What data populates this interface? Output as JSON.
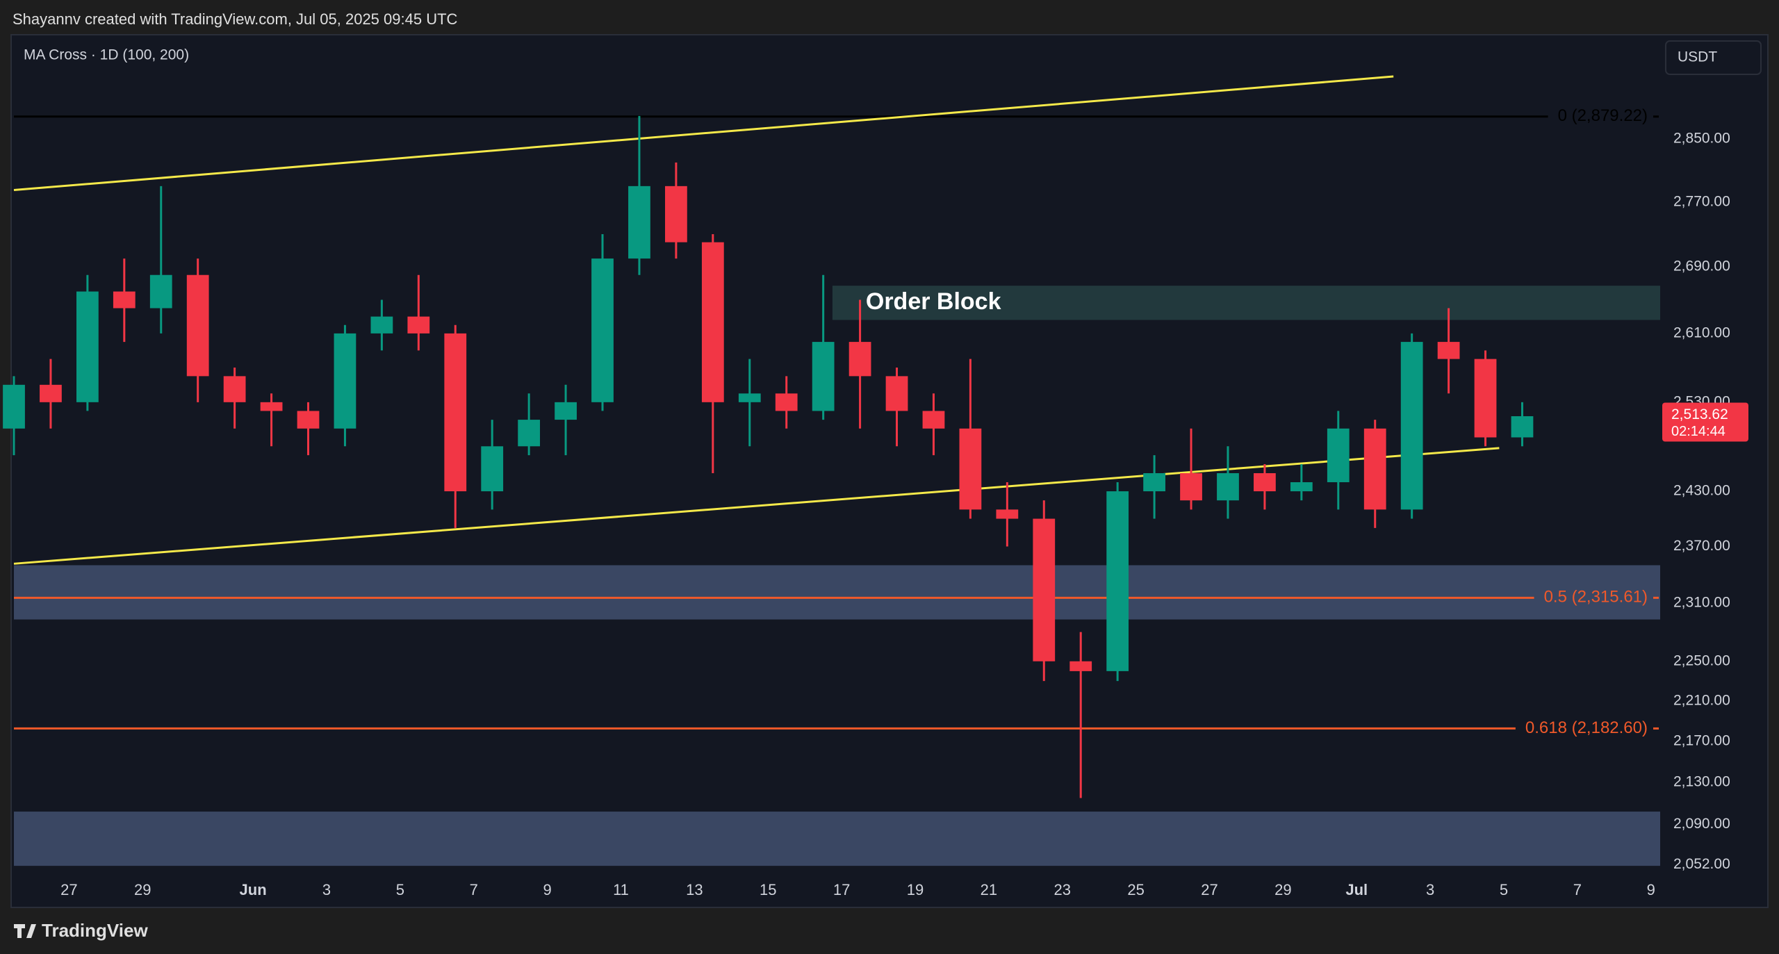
{
  "header": {
    "credit": "Shayannv created with TradingView.com, Jul 05, 2025 09:45 UTC"
  },
  "footer": {
    "brand": "TradingView"
  },
  "chart_data": {
    "type": "candlestick",
    "legend": "MA Cross · 1D (100, 200)",
    "currency": "USDT",
    "log_scale": true,
    "grid": false,
    "up_color": "#089981",
    "down_color": "#f23645",
    "xlim": [
      "2025-05-25T12:00",
      "2025-07-09T06:00"
    ],
    "xticks": [
      {
        "value": "2025-05-27",
        "label": "27"
      },
      {
        "value": "2025-05-29",
        "label": "29"
      },
      {
        "value": "2025-06-01",
        "label": "Jun"
      },
      {
        "value": "2025-06-03",
        "label": "3"
      },
      {
        "value": "2025-06-05",
        "label": "5"
      },
      {
        "value": "2025-06-07",
        "label": "7"
      },
      {
        "value": "2025-06-09",
        "label": "9"
      },
      {
        "value": "2025-06-11",
        "label": "11"
      },
      {
        "value": "2025-06-13",
        "label": "13"
      },
      {
        "value": "2025-06-15",
        "label": "15"
      },
      {
        "value": "2025-06-17",
        "label": "17"
      },
      {
        "value": "2025-06-19",
        "label": "19"
      },
      {
        "value": "2025-06-21",
        "label": "21"
      },
      {
        "value": "2025-06-23",
        "label": "23"
      },
      {
        "value": "2025-06-25",
        "label": "25"
      },
      {
        "value": "2025-06-27",
        "label": "27"
      },
      {
        "value": "2025-06-29",
        "label": "29"
      },
      {
        "value": "2025-07-01",
        "label": "Jul"
      },
      {
        "value": "2025-07-03",
        "label": "3"
      },
      {
        "value": "2025-07-05",
        "label": "5"
      },
      {
        "value": "2025-07-07",
        "label": "7"
      },
      {
        "value": "2025-07-09",
        "label": "9"
      }
    ],
    "ylim": [
      2044,
      2986
    ],
    "yticks": [
      {
        "value": 2850,
        "label": "2,850.00"
      },
      {
        "value": 2770,
        "label": "2,770.00"
      },
      {
        "value": 2690,
        "label": "2,690.00"
      },
      {
        "value": 2610,
        "label": "2,610.00"
      },
      {
        "value": 2530,
        "label": "2,530.00"
      },
      {
        "value": 2430,
        "label": "2,430.00"
      },
      {
        "value": 2370,
        "label": "2,370.00"
      },
      {
        "value": 2310,
        "label": "2,310.00"
      },
      {
        "value": 2250,
        "label": "2,250.00"
      },
      {
        "value": 2210,
        "label": "2,210.00"
      },
      {
        "value": 2170,
        "label": "2,170.00"
      },
      {
        "value": 2130,
        "label": "2,130.00"
      },
      {
        "value": 2090,
        "label": "2,090.00"
      },
      {
        "value": 2052,
        "label": "2,052.00"
      }
    ],
    "x": [
      "2025-05-25",
      "2025-05-26",
      "2025-05-27",
      "2025-05-28",
      "2025-05-29",
      "2025-05-30",
      "2025-05-31",
      "2025-06-01",
      "2025-06-02",
      "2025-06-03",
      "2025-06-04",
      "2025-06-05",
      "2025-06-06",
      "2025-06-07",
      "2025-06-08",
      "2025-06-09",
      "2025-06-10",
      "2025-06-11",
      "2025-06-12",
      "2025-06-13",
      "2025-06-14",
      "2025-06-15",
      "2025-06-16",
      "2025-06-17",
      "2025-06-18",
      "2025-06-19",
      "2025-06-20",
      "2025-06-21",
      "2025-06-22",
      "2025-06-23",
      "2025-06-24",
      "2025-06-25",
      "2025-06-26",
      "2025-06-27",
      "2025-06-28",
      "2025-06-29",
      "2025-06-30",
      "2025-07-01",
      "2025-07-02",
      "2025-07-03",
      "2025-07-04",
      "2025-07-05"
    ],
    "open": [
      2500,
      2550,
      2530,
      2660,
      2640,
      2680,
      2560,
      2530,
      2520,
      2500,
      2610,
      2630,
      2610,
      2430,
      2480,
      2510,
      2530,
      2700,
      2790,
      2720,
      2530,
      2540,
      2520,
      2600,
      2560,
      2520,
      2500,
      2410,
      2400,
      2250,
      2240,
      2430,
      2450,
      2420,
      2450,
      2430,
      2440,
      2500,
      2410,
      2600,
      2580,
      2490
    ],
    "high": [
      2560,
      2580,
      2680,
      2700,
      2790,
      2700,
      2570,
      2540,
      2530,
      2620,
      2650,
      2680,
      2620,
      2510,
      2540,
      2550,
      2730,
      2880,
      2820,
      2730,
      2580,
      2560,
      2680,
      2650,
      2570,
      2540,
      2580,
      2440,
      2420,
      2280,
      2440,
      2470,
      2500,
      2480,
      2460,
      2460,
      2520,
      2510,
      2610,
      2640,
      2590,
      2530
    ],
    "low": [
      2470,
      2500,
      2520,
      2600,
      2610,
      2530,
      2500,
      2480,
      2470,
      2480,
      2590,
      2590,
      2390,
      2410,
      2470,
      2470,
      2520,
      2680,
      2700,
      2450,
      2480,
      2500,
      2510,
      2500,
      2480,
      2470,
      2400,
      2370,
      2230,
      2115,
      2230,
      2400,
      2410,
      2400,
      2410,
      2420,
      2410,
      2390,
      2400,
      2540,
      2480,
      2480
    ],
    "close": [
      2550,
      2530,
      2660,
      2640,
      2680,
      2560,
      2530,
      2520,
      2500,
      2610,
      2630,
      2610,
      2430,
      2480,
      2510,
      2530,
      2700,
      2790,
      2720,
      2530,
      2540,
      2520,
      2600,
      2560,
      2520,
      2500,
      2410,
      2400,
      2250,
      2240,
      2430,
      2450,
      2420,
      2450,
      2430,
      2440,
      2500,
      2410,
      2600,
      2580,
      2490,
      2514
    ],
    "last_price": {
      "value": 2513.62,
      "label": "2,513.62",
      "countdown": "02:14:44",
      "color": "#f23645"
    },
    "fib_levels": [
      {
        "label": "0 (2,879.22)",
        "price": 2879.22,
        "color": "#000000"
      },
      {
        "label": "0.5 (2,315.61)",
        "price": 2315.61,
        "color": "#f0592a"
      },
      {
        "label": "0.618 (2,182.60)",
        "price": 2182.6,
        "color": "#f0592a"
      }
    ],
    "zones": [
      {
        "label": "Order Block",
        "start": "2025-06-16T18:00",
        "low": 2626,
        "high": 2667,
        "color": "#22393d"
      },
      {
        "start": "2025-05-25T12:00",
        "low": 2293,
        "high": 2350,
        "color": "#3a4763"
      },
      {
        "start": "2025-05-25T12:00",
        "low": 2051,
        "high": 2102,
        "color": "#3a4763"
      }
    ],
    "trendlines": [
      {
        "color": "#f5e94a",
        "points": [
          [
            "2025-05-25T12:00",
            2785
          ],
          [
            "2025-07-02T00:00",
            2932
          ]
        ]
      },
      {
        "color": "#f5e94a",
        "points": [
          [
            "2025-05-25T12:00",
            2351.6
          ],
          [
            "2025-07-04T21:00",
            2478
          ]
        ]
      }
    ]
  }
}
